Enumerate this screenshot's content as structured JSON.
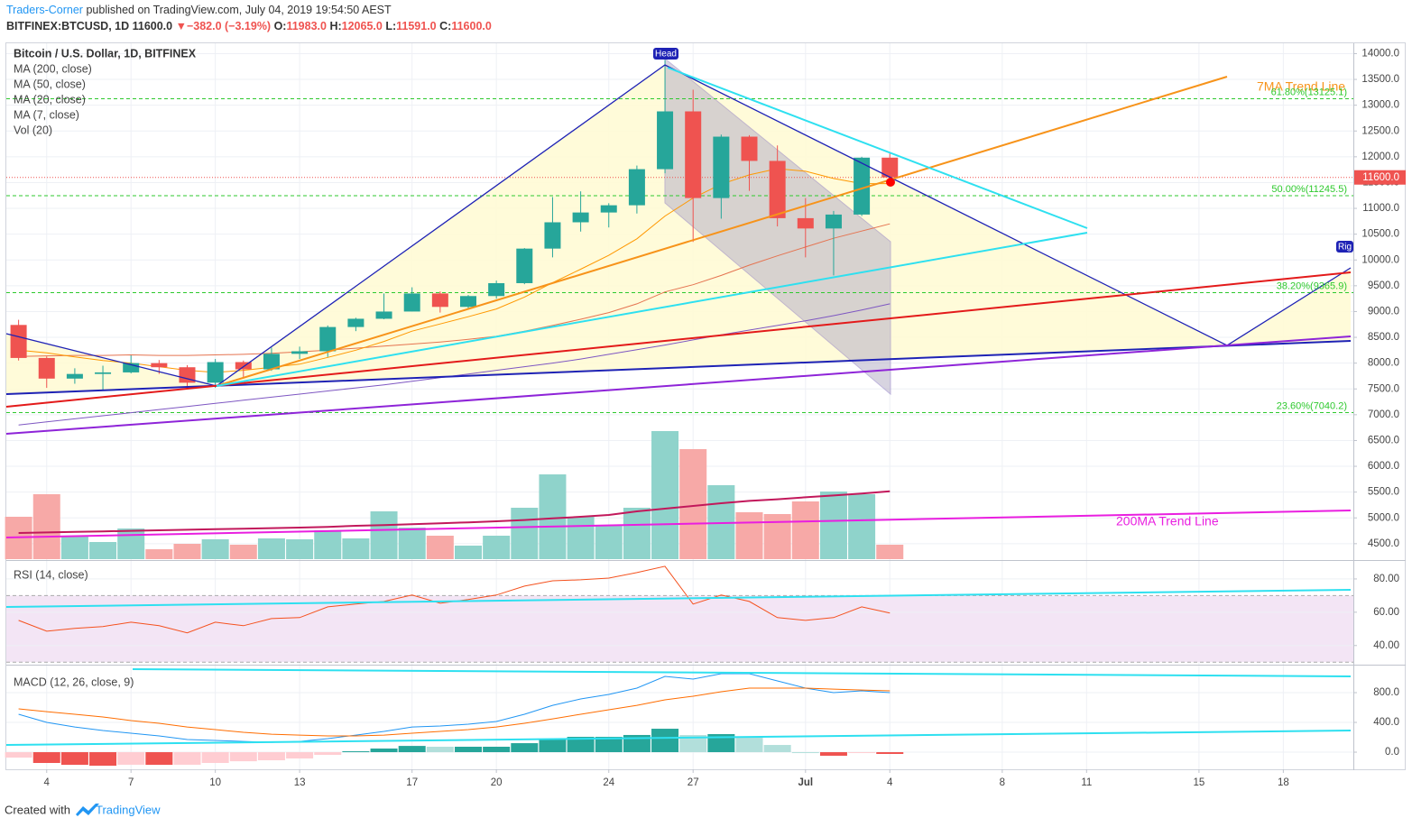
{
  "header": {
    "author": "Traders-Corner",
    "published": "published on TradingView.com, July 04, 2019 19:54:50 AEST",
    "symbol": "BITFINEX:BTCUSD, 1D",
    "last": "11600.0",
    "change": "−382.0 (−3.19%)",
    "ohlc": [
      {
        "key": "O:",
        "value": "11983.0"
      },
      {
        "key": "H:",
        "value": "12065.0"
      },
      {
        "key": "L:",
        "value": "11591.0"
      },
      {
        "key": "C:",
        "value": "11600.0"
      }
    ]
  },
  "chart_data": [
    {
      "type": "candlestick",
      "title": "Bitcoin / U.S. Dollar, 1D, BITFINEX",
      "categories": [
        "Jun 3",
        "Jun 4",
        "Jun 5",
        "Jun 6",
        "Jun 7",
        "Jun 8",
        "Jun 9",
        "Jun 10",
        "Jun 11",
        "Jun 12",
        "Jun 13",
        "Jun 14",
        "Jun 15",
        "Jun 16",
        "Jun 17",
        "Jun 18",
        "Jun 19",
        "Jun 20",
        "Jun 21",
        "Jun 22",
        "Jun 23",
        "Jun 24",
        "Jun 25",
        "Jun 26",
        "Jun 27",
        "Jun 28",
        "Jun 29",
        "Jun 30",
        "Jul 1",
        "Jul 2",
        "Jul 3",
        "Jul 4"
      ],
      "open": [
        8740,
        8100,
        7700,
        7790,
        7820,
        8000,
        7920,
        7620,
        8020,
        7880,
        8180,
        8230,
        8700,
        8860,
        9000,
        9350,
        9090,
        9300,
        9550,
        10220,
        10730,
        10920,
        11060,
        11760,
        12880,
        11200,
        12390,
        11920,
        10810,
        10610,
        10880,
        11983
      ],
      "high": [
        8840,
        8130,
        7900,
        7950,
        8150,
        8060,
        7960,
        8080,
        8050,
        8300,
        8320,
        8730,
        8880,
        9350,
        9470,
        9390,
        9320,
        9600,
        10230,
        11220,
        11330,
        11100,
        11830,
        13880,
        13300,
        12430,
        12420,
        12220,
        11200,
        10950,
        12000,
        12065
      ],
      "low": [
        8050,
        7520,
        7600,
        7460,
        7800,
        7790,
        7530,
        7520,
        7700,
        7850,
        8080,
        8120,
        8620,
        8850,
        9000,
        8980,
        9050,
        9250,
        9530,
        10050,
        10550,
        10630,
        10900,
        11680,
        10350,
        10800,
        11340,
        10650,
        10050,
        9700,
        10850,
        11591
      ],
      "close": [
        8100,
        7700,
        7790,
        7820,
        8000,
        7920,
        7620,
        8020,
        7880,
        8180,
        8230,
        8700,
        8860,
        9000,
        9350,
        9090,
        9300,
        9550,
        10220,
        10730,
        10920,
        11060,
        11760,
        12880,
        11200,
        12390,
        11920,
        10810,
        10610,
        10880,
        11983,
        11600
      ],
      "up_color": "#26a69a",
      "down_color": "#ef5350",
      "indicators": [
        {
          "name": "MA (200, close)"
        },
        {
          "name": "MA (50, close)",
          "color": "#7e57c2",
          "values": [
            6800,
            6860,
            6920,
            6980,
            7040,
            7100,
            7160,
            7220,
            7280,
            7340,
            7400,
            7460,
            7520,
            7580,
            7650,
            7720,
            7790,
            7860,
            7930,
            8000,
            8080,
            8170,
            8260,
            8350,
            8450,
            8550,
            8640,
            8730,
            8820,
            8920,
            9030,
            9150
          ]
        },
        {
          "name": "MA (20, close)",
          "color": "#e57350",
          "values": [
            8130,
            8140,
            8150,
            8150,
            8160,
            8150,
            8150,
            8160,
            8170,
            8190,
            8220,
            8250,
            8290,
            8330,
            8370,
            8410,
            8460,
            8520,
            8620,
            8730,
            8850,
            8980,
            9150,
            9380,
            9520,
            9700,
            9900,
            10080,
            10250,
            10420,
            10560,
            10700
          ]
        },
        {
          "name": "MA (7, close)",
          "color": "#ff9800",
          "values": [
            8250,
            8200,
            8120,
            8050,
            8000,
            7930,
            7860,
            7820,
            7860,
            7920,
            7980,
            8110,
            8250,
            8420,
            8620,
            8760,
            8900,
            9050,
            9280,
            9560,
            9820,
            10090,
            10410,
            10850,
            11200,
            11470,
            11650,
            11770,
            11720,
            11580,
            11480,
            11480
          ]
        }
      ],
      "ylim": [
        4200,
        14200
      ],
      "yticks": [
        {
          "value": 4500,
          "label": "4500.0"
        },
        {
          "value": 5000,
          "label": "5000.0"
        },
        {
          "value": 5500,
          "label": "5500.0"
        },
        {
          "value": 6000,
          "label": "6000.0"
        },
        {
          "value": 6500,
          "label": "6500.0"
        },
        {
          "value": 7000,
          "label": "7000.0"
        },
        {
          "value": 7500,
          "label": "7500.0"
        },
        {
          "value": 8000,
          "label": "8000.0"
        },
        {
          "value": 8500,
          "label": "8500.0"
        },
        {
          "value": 9000,
          "label": "9000.0"
        },
        {
          "value": 9500,
          "label": "9500.0"
        },
        {
          "value": 10000,
          "label": "10000.0"
        },
        {
          "value": 10500,
          "label": "10500.0"
        },
        {
          "value": 11000,
          "label": "11000.0"
        },
        {
          "value": 11500,
          "label": "11500.0"
        },
        {
          "value": 12000,
          "label": "12000.0"
        },
        {
          "value": 12500,
          "label": "12500.0"
        },
        {
          "value": 13000,
          "label": "13000.0"
        },
        {
          "value": 13500,
          "label": "13500.0"
        },
        {
          "value": 14000,
          "label": "14000.0"
        }
      ],
      "xticks": [
        {
          "value": "Jun 4",
          "label": "4"
        },
        {
          "value": "Jun 7",
          "label": "7"
        },
        {
          "value": "Jun 10",
          "label": "10"
        },
        {
          "value": "Jun 13",
          "label": "13"
        },
        {
          "value": "Jun 17",
          "label": "17"
        },
        {
          "value": "Jun 20",
          "label": "20"
        },
        {
          "value": "Jun 24",
          "label": "24"
        },
        {
          "value": "Jun 27",
          "label": "27"
        },
        {
          "value": "Jul 1",
          "label": "Jul"
        },
        {
          "value": "Jul 4",
          "label": "4"
        },
        {
          "value": "Jul 8",
          "label": "8"
        },
        {
          "value": "Jul 11",
          "label": "11"
        },
        {
          "value": "Jul 15",
          "label": "15"
        },
        {
          "value": "Jul 18",
          "label": "18"
        }
      ],
      "price_line": {
        "value": 11600,
        "label": "11600.0",
        "color": "#ef5350"
      },
      "levels": [
        {
          "value": 13125.1,
          "label": "61.80%(13125.1)"
        },
        {
          "value": 11245.5,
          "label": "50.00%(11245.5)"
        },
        {
          "value": 9365.9,
          "label": "38.20%(9365.9)"
        },
        {
          "value": 7040.2,
          "label": "23.60%(7040.2)"
        }
      ],
      "level_color": "#2ec92e",
      "annotations": {
        "head": "Head",
        "right": "Rig",
        "trend": "7MA Trend Line"
      },
      "grid": true
    },
    {
      "type": "bar",
      "title": "Vol (20)",
      "values": [
        23500,
        36000,
        13000,
        9500,
        17000,
        5500,
        8500,
        11000,
        8000,
        11500,
        11000,
        16000,
        11500,
        26500,
        17500,
        13000,
        7500,
        13000,
        28500,
        47000,
        23500,
        18500,
        28500,
        71000,
        61000,
        41000,
        26000,
        25000,
        32000,
        37500,
        36000,
        8000
      ],
      "up_color": "#8fd3cb",
      "down_color": "#f7a9a7",
      "ylim": [
        0,
        80000
      ],
      "ma": {
        "color": "#c2185b",
        "values": [
          14500,
          14800,
          15100,
          15400,
          15700,
          16000,
          16300,
          16600,
          16900,
          17200,
          17500,
          17900,
          18500,
          18900,
          19400,
          19900,
          20400,
          21000,
          21700,
          22600,
          23500,
          24500,
          26500,
          28000,
          29500,
          31000,
          32300,
          33200,
          34300,
          35300,
          36400,
          37600
        ]
      },
      "annotation": "200MA Trend Line"
    },
    {
      "type": "line",
      "title": "RSI (14, close)",
      "color": "#f4511e",
      "values": [
        55.1,
        48.6,
        50.3,
        51.4,
        54,
        51.9,
        47.6,
        54,
        51.9,
        56.2,
        56.8,
        63.2,
        64.9,
        66.5,
        70.3,
        65.4,
        67.6,
        70.3,
        75.7,
        78.9,
        79.5,
        80.5,
        83.8,
        87.6,
        64.9,
        70.3,
        66.5,
        56.8,
        55.1,
        56.8,
        63.2,
        59.5
      ],
      "band": [
        30,
        70
      ],
      "band_color": "#f3e5f5",
      "ylim": [
        28.5,
        90.8
      ],
      "yticks": [
        {
          "value": 40,
          "label": "40.00"
        },
        {
          "value": 60,
          "label": "60.00"
        },
        {
          "value": 80,
          "label": "80.00"
        }
      ]
    },
    {
      "type": "macd",
      "title": "MACD (12, 26, close, 9)",
      "macd": {
        "color": "#2196f3",
        "values": [
          509,
          400,
          339,
          291,
          255,
          218,
          170,
          158,
          145,
          133,
          145,
          182,
          230,
          279,
          339,
          352,
          376,
          412,
          509,
          630,
          715,
          776,
          861,
          1018,
          982,
          1055,
          1055,
          958,
          861,
          800,
          824,
          800
        ]
      },
      "signal": {
        "color": "#ff6d00",
        "values": [
          582,
          545,
          509,
          473,
          424,
          388,
          339,
          303,
          267,
          242,
          230,
          218,
          218,
          230,
          255,
          279,
          303,
          339,
          388,
          448,
          509,
          570,
          630,
          703,
          752,
          812,
          861,
          861,
          861,
          848,
          836,
          824
        ]
      },
      "histogram": [
        -73,
        -145,
        -170,
        -182,
        -169,
        -170,
        -169,
        -145,
        -122,
        -109,
        -85,
        -36,
        12,
        49,
        84,
        73,
        73,
        73,
        121,
        182,
        206,
        206,
        231,
        315,
        230,
        243,
        194,
        97,
        0,
        -48,
        -12,
        -24
      ],
      "hist_colors": [
        "#26a69a",
        "#b2dfdb",
        "#ffcdd2",
        "#ef5350"
      ],
      "ylim": [
        -230,
        1164
      ],
      "yticks": [
        {
          "value": 0,
          "label": "0.0"
        },
        {
          "value": 400,
          "label": "400.0"
        },
        {
          "value": 800,
          "label": "800.0"
        }
      ]
    }
  ],
  "footer": {
    "text": "Created with",
    "brand": "TradingView"
  }
}
